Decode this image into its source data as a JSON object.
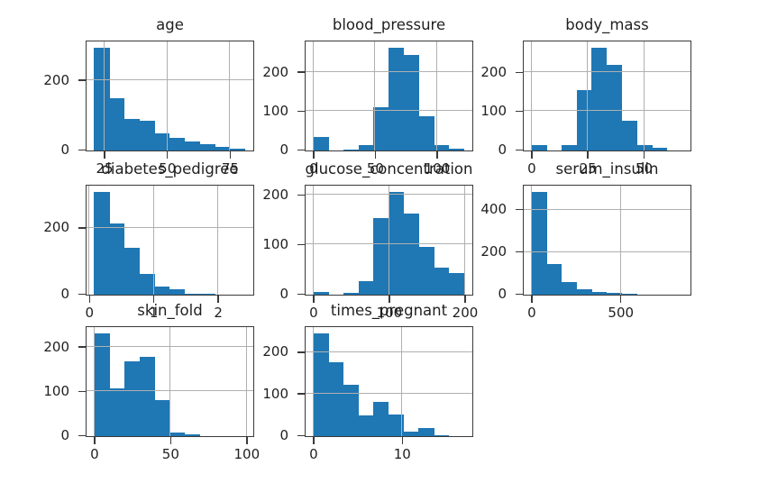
{
  "figure": {
    "background": "#ffffff",
    "bar_color": "#1f77b4",
    "grid_color": "#b0b0b0",
    "spine_color": "#3a3a3a",
    "text_color": "#1f1f1f"
  },
  "chart_data": [
    {
      "type": "bar",
      "subtype": "histogram",
      "title": "age",
      "row": 0,
      "col": 0,
      "bin_start": 21,
      "bin_width": 6,
      "counts": [
        295,
        150,
        90,
        86,
        50,
        37,
        26,
        18,
        11,
        5
      ],
      "xlim": [
        18,
        84
      ],
      "ylim": [
        0,
        310
      ],
      "xticks": [
        25,
        50,
        75
      ],
      "yticks": [
        0,
        200
      ],
      "grid": true
    },
    {
      "type": "bar",
      "subtype": "histogram",
      "title": "blood_pressure",
      "row": 0,
      "col": 1,
      "bin_start": 0,
      "bin_width": 12.2,
      "counts": [
        35,
        0,
        3,
        13,
        112,
        265,
        246,
        87,
        13,
        5
      ],
      "xlim": [
        -6.1,
        128.1
      ],
      "ylim": [
        0,
        278
      ],
      "xticks": [
        0,
        50,
        100
      ],
      "yticks": [
        0,
        100,
        200
      ],
      "grid": true
    },
    {
      "type": "bar",
      "subtype": "histogram",
      "title": "body_mass",
      "row": 0,
      "col": 2,
      "bin_start": 0,
      "bin_width": 6.71,
      "counts": [
        15,
        0,
        15,
        156,
        266,
        221,
        76,
        14,
        7,
        1
      ],
      "xlim": [
        -3.36,
        70.46
      ],
      "ylim": [
        0,
        279
      ],
      "xticks": [
        0,
        25,
        50
      ],
      "yticks": [
        0,
        100,
        200
      ],
      "grid": true
    },
    {
      "type": "bar",
      "subtype": "histogram",
      "title": "diabetes_pedigree",
      "row": 1,
      "col": 0,
      "bin_start": 0.078,
      "bin_width": 0.2342,
      "counts": [
        310,
        215,
        140,
        62,
        25,
        15,
        4,
        2,
        1,
        1
      ],
      "xlim": [
        -0.039,
        2.537
      ],
      "ylim": [
        0,
        326
      ],
      "xticks": [
        0,
        1,
        2
      ],
      "yticks": [
        0,
        200
      ],
      "grid": true
    },
    {
      "type": "bar",
      "subtype": "histogram",
      "title": "glucose_concentration",
      "row": 1,
      "col": 1,
      "bin_start": 0,
      "bin_width": 19.9,
      "counts": [
        5,
        0,
        3,
        28,
        154,
        208,
        163,
        96,
        55,
        43
      ],
      "xlim": [
        -9.95,
        208.95
      ],
      "ylim": [
        0,
        218
      ],
      "xticks": [
        0,
        100,
        200
      ],
      "yticks": [
        0,
        100,
        200
      ],
      "grid": true
    },
    {
      "type": "bar",
      "subtype": "histogram",
      "title": "serum_insulin",
      "row": 1,
      "col": 2,
      "bin_start": 0,
      "bin_width": 84.6,
      "counts": [
        487,
        143,
        58,
        24,
        11,
        8,
        3,
        1,
        0,
        1
      ],
      "xlim": [
        -42.3,
        888.3
      ],
      "ylim": [
        0,
        511
      ],
      "xticks": [
        0,
        500
      ],
      "yticks": [
        0,
        200,
        400
      ],
      "grid": true
    },
    {
      "type": "bar",
      "subtype": "histogram",
      "title": "skin_fold",
      "row": 2,
      "col": 0,
      "bin_start": 0,
      "bin_width": 9.9,
      "counts": [
        232,
        108,
        168,
        178,
        82,
        8,
        5,
        1,
        0,
        1
      ],
      "xlim": [
        -4.95,
        103.95
      ],
      "ylim": [
        0,
        244
      ],
      "xticks": [
        0,
        50,
        100
      ],
      "yticks": [
        0,
        100,
        200
      ],
      "grid": true
    },
    {
      "type": "bar",
      "subtype": "histogram",
      "title": "times_pregnant",
      "row": 2,
      "col": 1,
      "bin_start": 0,
      "bin_width": 1.7,
      "counts": [
        247,
        178,
        122,
        50,
        83,
        52,
        11,
        19,
        3,
        1
      ],
      "xlim": [
        -0.85,
        17.85
      ],
      "ylim": [
        0,
        259
      ],
      "xticks": [
        0,
        10
      ],
      "yticks": [
        0,
        100,
        200
      ],
      "grid": true
    }
  ]
}
